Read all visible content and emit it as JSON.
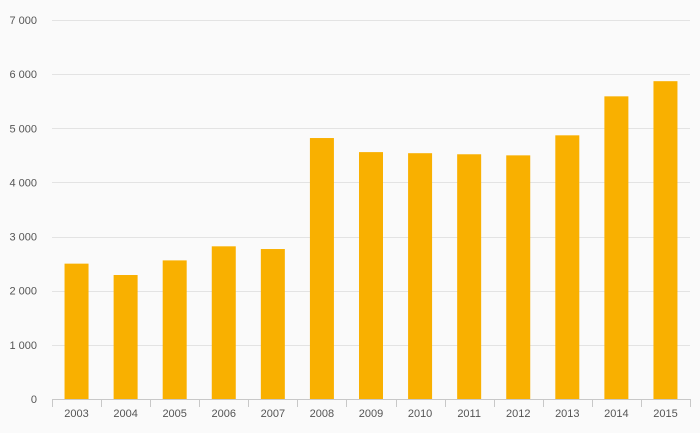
{
  "chart_data": {
    "type": "bar",
    "categories": [
      "2003",
      "2004",
      "2005",
      "2006",
      "2007",
      "2008",
      "2009",
      "2010",
      "2011",
      "2012",
      "2013",
      "2014",
      "2015"
    ],
    "values": [
      2500,
      2290,
      2560,
      2820,
      2770,
      4820,
      4560,
      4540,
      4520,
      4500,
      4870,
      5590,
      5870
    ],
    "ylim": [
      0,
      7000
    ],
    "yticks": [
      0,
      1000,
      2000,
      3000,
      4000,
      5000,
      6000,
      7000
    ],
    "ytick_labels": [
      "0",
      "1 000",
      "2 000",
      "3 000",
      "4 000",
      "5 000",
      "6 000",
      "7 000"
    ],
    "title": "",
    "xlabel": "",
    "ylabel": "",
    "grid": true,
    "bar_color": "#f9b000"
  }
}
